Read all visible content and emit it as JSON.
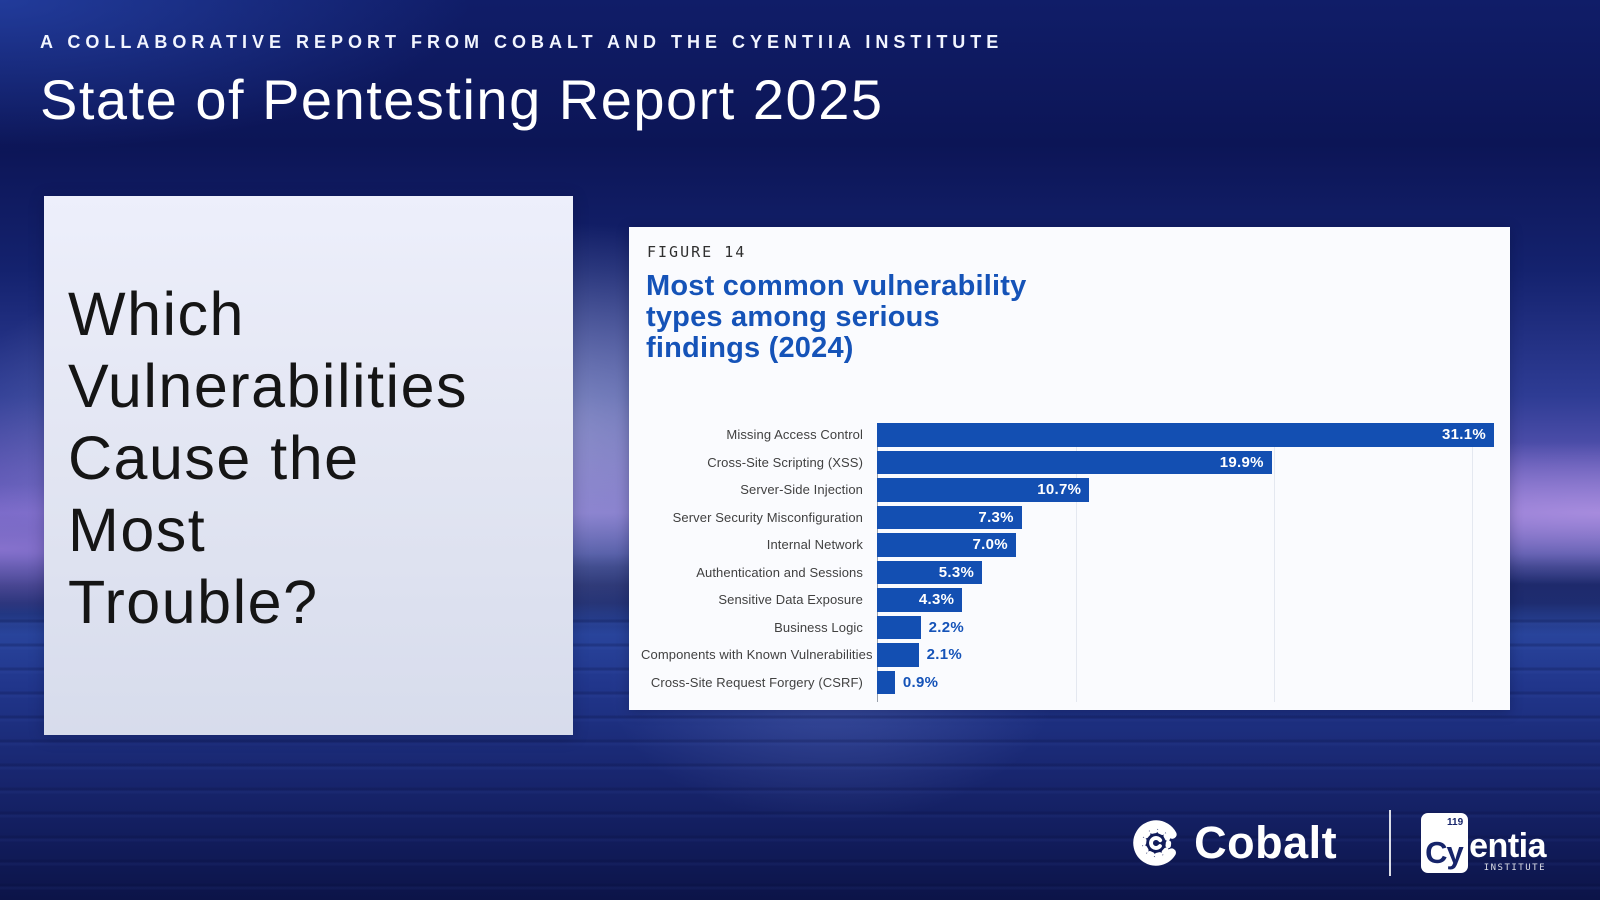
{
  "header": {
    "eyebrow": "A COLLABORATIVE REPORT FROM COBALT AND THE CYENTIIA INSTITUTE",
    "title": "State of Pentesting Report 2025"
  },
  "question_panel": {
    "text": "Which Vulnerabilities Cause the Most Trouble?",
    "lines": [
      "Which",
      "Vulnerabilities",
      "Cause the",
      "Most",
      "Trouble?"
    ]
  },
  "figure": {
    "label": "FIGURE 14",
    "title_lines": [
      "Most common vulnerability",
      "types among serious",
      "findings (2024)"
    ]
  },
  "chart_data": {
    "type": "bar",
    "orientation": "horizontal",
    "figure_label": "FIGURE 14",
    "title": "Most common vulnerability types among serious findings (2024)",
    "categories": [
      "Missing Access Control",
      "Cross-Site Scripting (XSS)",
      "Server-Side Injection",
      "Server Security Misconfiguration",
      "Internal Network",
      "Authentication and Sessions",
      "Sensitive Data Exposure",
      "Business Logic",
      "Components with Known Vulnerabilities",
      "Cross-Site Request Forgery (CSRF)"
    ],
    "values": [
      31.1,
      19.9,
      10.7,
      7.3,
      7.0,
      5.3,
      4.3,
      2.2,
      2.1,
      0.9
    ],
    "value_labels": [
      "31.1%",
      "19.9%",
      "10.7%",
      "7.3%",
      "7.0%",
      "5.3%",
      "4.3%",
      "2.2%",
      "2.1%",
      "0.9%"
    ],
    "unit": "%",
    "xlim": [
      0,
      31.1
    ],
    "gridlines_percent": [
      10,
      20,
      30
    ],
    "grid": true,
    "legend": false,
    "bar_color": "#134fb2",
    "value_label_inside_min": 4.0
  },
  "footer": {
    "cobalt_label": "Cobalt",
    "cyentia_tile_letters": "Cy",
    "cyentia_tile_number": "119",
    "cyentia_rest": "entia",
    "cyentia_subtitle": "INSTITUTE"
  },
  "colors": {
    "bar_blue": "#134fb2",
    "figure_title_blue": "#1553b8",
    "background_navy": "#101d68",
    "panel_light": "#e3e6f3"
  }
}
